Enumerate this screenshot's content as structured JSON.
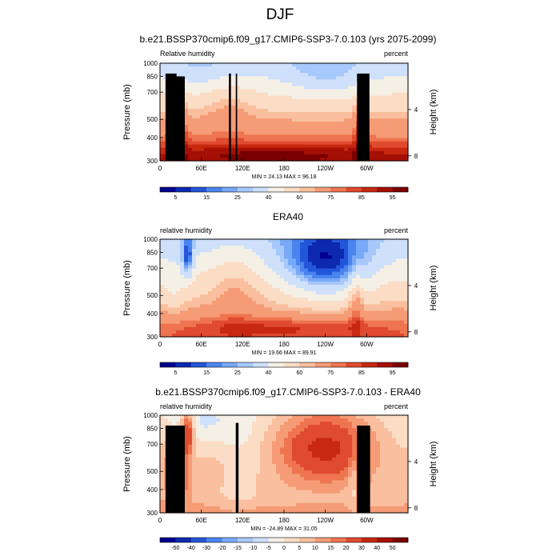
{
  "main_title": "DJF",
  "colors": {
    "rh_scale": [
      "#00008f",
      "#0d29b0",
      "#2356d9",
      "#4a85ef",
      "#78a9f7",
      "#a6c8fb",
      "#cfe0fb",
      "#f5f0e6",
      "#fbdcc5",
      "#f9bf9e",
      "#f59b76",
      "#ee754f",
      "#e04a2e",
      "#c8280f",
      "#a50f05",
      "#7a0000"
    ],
    "diff_scale": [
      "#00008f",
      "#0d29b0",
      "#2356d9",
      "#4a85ef",
      "#78a9f7",
      "#a6c8fb",
      "#cfe0fb",
      "#f5f0e6",
      "#fbdcc5",
      "#f9bf9e",
      "#f59b76",
      "#ee754f",
      "#e04a2e",
      "#c8280f",
      "#a50f05",
      "#7a0000"
    ],
    "topography": "#000000"
  },
  "chart_data": [
    {
      "type": "contour",
      "title": "b.e21.BSSP370cmip6.f09_g17.CMIP6-SSP3-7.0.103 (yrs 2075-2099)",
      "left_label": "Relative humidity",
      "right_label": "percent",
      "ylabel": "Pressure (mb)",
      "ylabel_right": "Height (km)",
      "y_scale": "log",
      "y_ticks": [
        "300",
        "400",
        "500",
        "700",
        "850",
        "1000"
      ],
      "y_ticks_right": [
        "8",
        "4"
      ],
      "x_ticks": [
        "0",
        "60E",
        "120E",
        "180",
        "120W",
        "60W"
      ],
      "xlim": [
        0,
        360
      ],
      "ylim": [
        1000,
        300
      ],
      "stats": "MIN = 24.13  MAX = 96.18",
      "colorbar_labels": [
        "5",
        "15",
        "25",
        "40",
        "60",
        "75",
        "85",
        "95"
      ],
      "min": 24.13,
      "max": 96.18
    },
    {
      "type": "contour",
      "title": "ERA40",
      "left_label": "relative humidity",
      "right_label": "percent",
      "ylabel": "Pressure (mb)",
      "ylabel_right": "Height (km)",
      "y_scale": "log",
      "y_ticks": [
        "300",
        "400",
        "500",
        "700",
        "850",
        "1000"
      ],
      "y_ticks_right": [
        "8",
        "4"
      ],
      "x_ticks": [
        "0",
        "60E",
        "120E",
        "180",
        "120W",
        "60W"
      ],
      "xlim": [
        0,
        360
      ],
      "ylim": [
        1000,
        300
      ],
      "stats": "MIN = 19.66  MAX = 89.91",
      "colorbar_labels": [
        "5",
        "15",
        "25",
        "40",
        "60",
        "75",
        "85",
        "95"
      ],
      "min": 19.66,
      "max": 89.91
    },
    {
      "type": "contour",
      "title": "b.e21.BSSP370cmip6.f09_g17.CMIP6-SSP3-7.0.103 - ERA40",
      "left_label": "relative humidity",
      "right_label": "percent",
      "ylabel": "Pressure (mb)",
      "ylabel_right": "Height (km)",
      "y_scale": "log",
      "y_ticks": [
        "300",
        "400",
        "500",
        "700",
        "850",
        "1000"
      ],
      "y_ticks_right": [
        "8",
        "4"
      ],
      "x_ticks": [
        "0",
        "60E",
        "120E",
        "180",
        "120W",
        "60W"
      ],
      "xlim": [
        0,
        360
      ],
      "ylim": [
        1000,
        300
      ],
      "stats": "MIN = -24.89  MAX = 31.05",
      "colorbar_labels": [
        "-50",
        "-40",
        "-30",
        "-20",
        "-15",
        "-10",
        "-5",
        "0",
        "5",
        "10",
        "15",
        "20",
        "30",
        "40",
        "50"
      ],
      "min": -24.89,
      "max": 31.05
    }
  ]
}
